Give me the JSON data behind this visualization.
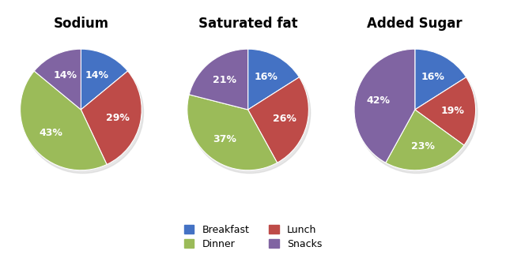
{
  "charts": [
    {
      "title": "Sodium",
      "values": [
        14,
        29,
        43,
        14
      ],
      "labels": [
        "Breakfast",
        "Lunch",
        "Dinner",
        "Snacks"
      ],
      "start_angle": 90
    },
    {
      "title": "Saturated fat",
      "values": [
        16,
        26,
        37,
        21
      ],
      "labels": [
        "Breakfast",
        "Lunch",
        "Dinner",
        "Snacks"
      ],
      "start_angle": 90
    },
    {
      "title": "Added Sugar",
      "values": [
        16,
        19,
        23,
        42
      ],
      "labels": [
        "Breakfast",
        "Lunch",
        "Dinner",
        "Snacks"
      ],
      "start_angle": 90
    }
  ],
  "colors": {
    "Breakfast": "#4472C4",
    "Lunch": "#BE4B48",
    "Dinner": "#9BBB59",
    "Snacks": "#8064A2"
  },
  "text_color": "#FFFFFF",
  "font_size_title": 12,
  "font_size_label": 9,
  "background_color": "#FFFFFF",
  "legend_order": [
    "Breakfast",
    "Dinner",
    "Lunch",
    "Snacks"
  ]
}
